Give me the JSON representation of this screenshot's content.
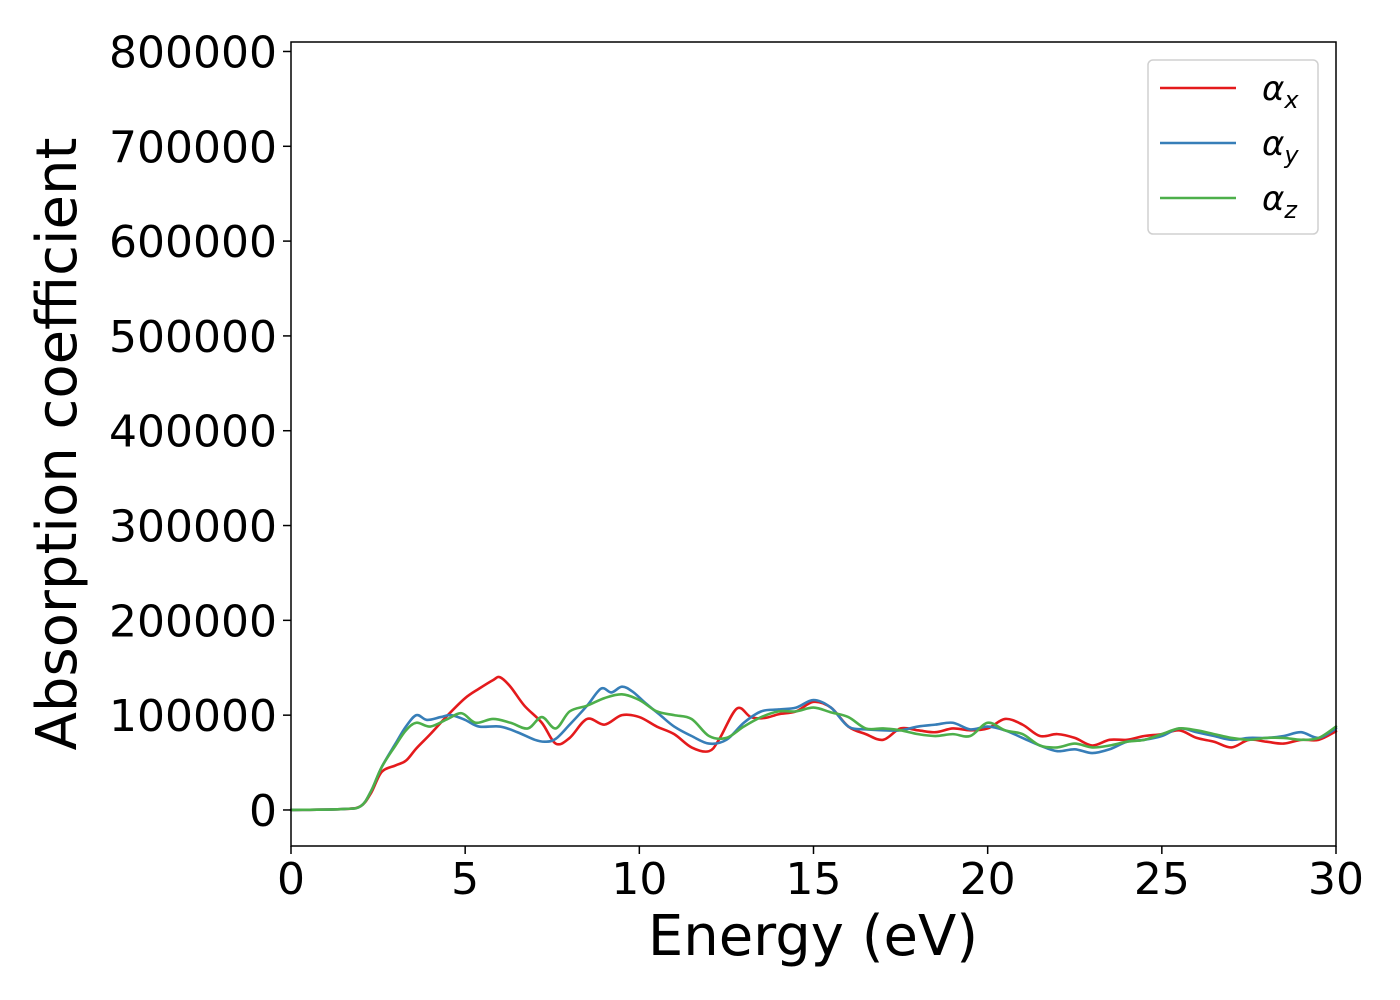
{
  "chart_data": {
    "type": "line",
    "title": "",
    "xlabel": "Energy (eV)",
    "ylabel": "Absorption coefficient",
    "xlim": [
      0,
      30
    ],
    "ylim": [
      -38000,
      810000
    ],
    "xticks": [
      0,
      5,
      10,
      15,
      20,
      25,
      30
    ],
    "xtick_labels": [
      "0",
      "5",
      "10",
      "15",
      "20",
      "25",
      "30"
    ],
    "yticks": [
      0,
      100000,
      200000,
      300000,
      400000,
      500000,
      600000,
      700000,
      800000
    ],
    "ytick_labels": [
      "0",
      "100000",
      "200000",
      "300000",
      "400000",
      "500000",
      "600000",
      "700000",
      "800000"
    ],
    "grid": false,
    "legend_position": "top-right",
    "series": [
      {
        "name": "α",
        "subscript": "x",
        "color": "#e41a1c",
        "x": [
          0,
          1.5,
          2.0,
          2.3,
          2.6,
          3.0,
          3.3,
          3.6,
          4.0,
          4.5,
          5.0,
          5.4,
          5.8,
          6.0,
          6.3,
          6.7,
          7.2,
          7.6,
          8.0,
          8.5,
          9.0,
          9.5,
          10.0,
          10.5,
          11.0,
          11.5,
          12.0,
          12.3,
          12.8,
          13.2,
          13.6,
          14.0,
          14.5,
          15.0,
          15.5,
          16.0,
          16.5,
          17.0,
          17.5,
          18.0,
          18.5,
          19.0,
          19.5,
          20.0,
          20.5,
          21.0,
          21.5,
          22.0,
          22.5,
          23.0,
          23.5,
          24.0,
          24.5,
          25.0,
          25.5,
          26.0,
          26.5,
          27.0,
          27.5,
          28.0,
          28.5,
          29.0,
          29.5,
          30.0
        ],
        "y": [
          0,
          1000,
          4000,
          18000,
          40000,
          47000,
          52000,
          65000,
          80000,
          100000,
          118000,
          128000,
          137000,
          140000,
          130000,
          110000,
          92000,
          70000,
          76000,
          96000,
          90000,
          100000,
          98000,
          88000,
          80000,
          66000,
          62000,
          75000,
          107000,
          98000,
          97000,
          101000,
          104000,
          114000,
          108000,
          88000,
          80000,
          74000,
          86000,
          84000,
          82000,
          86000,
          84000,
          86000,
          96000,
          90000,
          78000,
          80000,
          76000,
          68000,
          74000,
          74000,
          78000,
          80000,
          84000,
          76000,
          72000,
          66000,
          74000,
          72000,
          70000,
          74000,
          74000,
          83000
        ]
      },
      {
        "name": "α",
        "subscript": "y",
        "color": "#377eb8",
        "x": [
          0,
          1.5,
          2.0,
          2.3,
          2.6,
          3.0,
          3.3,
          3.6,
          3.9,
          4.3,
          4.6,
          5.0,
          5.4,
          6.0,
          6.5,
          7.0,
          7.3,
          7.6,
          8.0,
          8.5,
          8.9,
          9.2,
          9.5,
          9.8,
          10.2,
          10.6,
          11.0,
          11.5,
          12.0,
          12.5,
          13.0,
          13.5,
          14.0,
          14.5,
          15.0,
          15.5,
          16.0,
          16.5,
          17.0,
          17.5,
          18.0,
          18.5,
          19.0,
          19.5,
          20.0,
          20.5,
          21.0,
          21.5,
          22.0,
          22.5,
          23.0,
          23.5,
          24.0,
          24.5,
          25.0,
          25.5,
          26.0,
          26.5,
          27.0,
          27.5,
          28.0,
          28.5,
          29.0,
          29.5,
          30.0
        ],
        "y": [
          0,
          1000,
          4000,
          20000,
          45000,
          70000,
          88000,
          100000,
          95000,
          98000,
          100000,
          95000,
          88000,
          88000,
          82000,
          74000,
          72000,
          75000,
          90000,
          110000,
          128000,
          124000,
          130000,
          125000,
          112000,
          100000,
          88000,
          78000,
          70000,
          74000,
          92000,
          104000,
          106000,
          108000,
          116000,
          108000,
          88000,
          85000,
          84000,
          84000,
          88000,
          90000,
          92000,
          85000,
          88000,
          84000,
          76000,
          68000,
          62000,
          64000,
          60000,
          64000,
          72000,
          74000,
          78000,
          86000,
          82000,
          78000,
          74000,
          76000,
          76000,
          78000,
          82000,
          76000,
          86000
        ]
      },
      {
        "name": "α",
        "subscript": "z",
        "color": "#4daf4a",
        "x": [
          0,
          1.5,
          2.0,
          2.3,
          2.6,
          3.0,
          3.3,
          3.6,
          4.0,
          4.5,
          4.9,
          5.3,
          5.8,
          6.3,
          6.8,
          7.2,
          7.6,
          8.0,
          8.5,
          9.0,
          9.5,
          10.0,
          10.5,
          11.0,
          11.5,
          12.0,
          12.5,
          13.0,
          13.5,
          14.0,
          14.5,
          15.0,
          15.5,
          16.0,
          16.5,
          17.0,
          17.5,
          18.0,
          18.5,
          19.0,
          19.5,
          20.0,
          20.5,
          21.0,
          21.5,
          22.0,
          22.5,
          23.0,
          23.5,
          24.0,
          24.5,
          25.0,
          25.5,
          26.0,
          26.5,
          27.0,
          27.5,
          28.0,
          28.5,
          29.0,
          29.5,
          30.0
        ],
        "y": [
          0,
          1000,
          4000,
          20000,
          45000,
          68000,
          84000,
          92000,
          88000,
          96000,
          102000,
          92000,
          96000,
          92000,
          86000,
          98000,
          86000,
          104000,
          110000,
          118000,
          122000,
          116000,
          104000,
          100000,
          96000,
          78000,
          76000,
          88000,
          98000,
          104000,
          104000,
          108000,
          103000,
          98000,
          86000,
          86000,
          84000,
          80000,
          78000,
          80000,
          78000,
          92000,
          84000,
          80000,
          68000,
          66000,
          70000,
          66000,
          68000,
          72000,
          74000,
          80000,
          86000,
          84000,
          80000,
          76000,
          74000,
          76000,
          76000,
          74000,
          76000,
          88000
        ]
      }
    ]
  }
}
